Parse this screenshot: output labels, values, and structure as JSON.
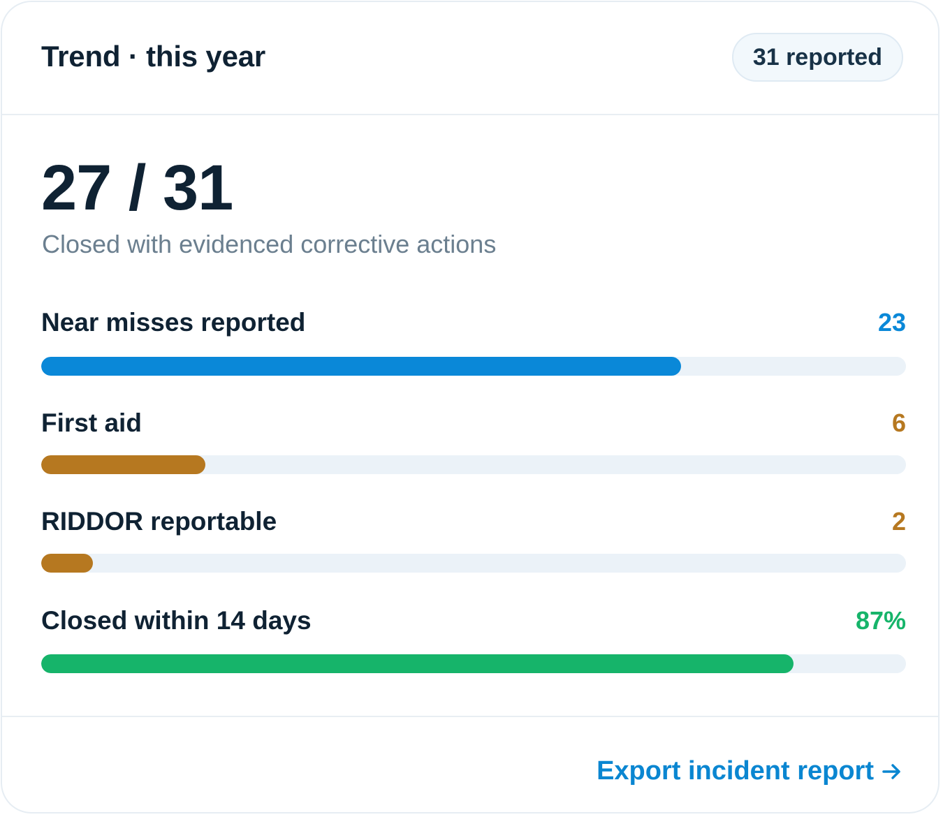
{
  "header": {
    "title": "Trend · this year",
    "badge": "31 reported"
  },
  "summary": {
    "value": "27 / 31",
    "caption": "Closed with evidenced corrective actions"
  },
  "metrics": [
    {
      "label": "Near misses reported",
      "value": "23",
      "fraction": 0.74,
      "color": "#0a88d8",
      "value_color": "#0a88d8"
    },
    {
      "label": "First aid",
      "value": "6",
      "fraction": 0.19,
      "color": "#b67820",
      "value_color": "#b67820"
    },
    {
      "label": "RIDDOR reportable",
      "value": "2",
      "fraction": 0.06,
      "color": "#b67820",
      "value_color": "#b67820"
    },
    {
      "label": "Closed within 14 days",
      "value": "87%",
      "fraction": 0.87,
      "color": "#16b46a",
      "value_color": "#16b46a"
    }
  ],
  "footer": {
    "link_label": "Export incident report",
    "link_icon": "arrow-right-icon"
  }
}
